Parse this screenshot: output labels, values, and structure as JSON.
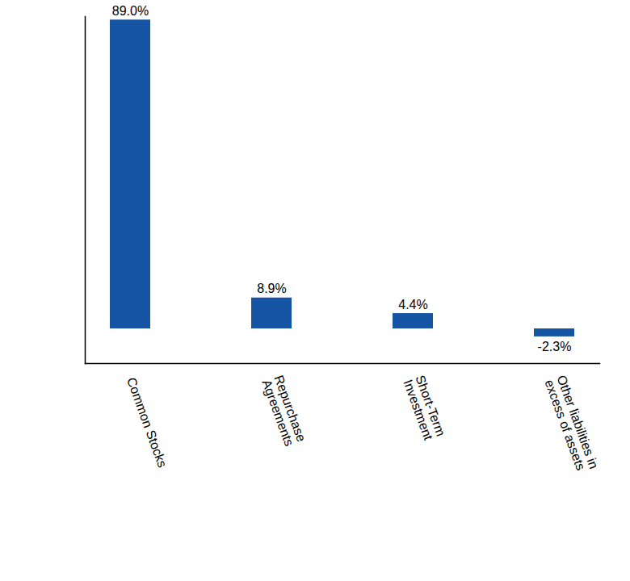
{
  "chart_data": {
    "type": "bar",
    "categories": [
      "Common Stocks",
      "Repurchase Agreements",
      "Short-Term Investment",
      "Other liabilities in excess of assets"
    ],
    "values": [
      89.0,
      8.9,
      4.4,
      -2.3
    ],
    "value_labels": [
      "89.0%",
      "8.9%",
      "4.4%",
      "-2.3%"
    ],
    "data_labels": true,
    "color": "#1654a4",
    "ylim": [
      -10,
      90
    ],
    "grid": false,
    "tick_labels": "x"
  }
}
